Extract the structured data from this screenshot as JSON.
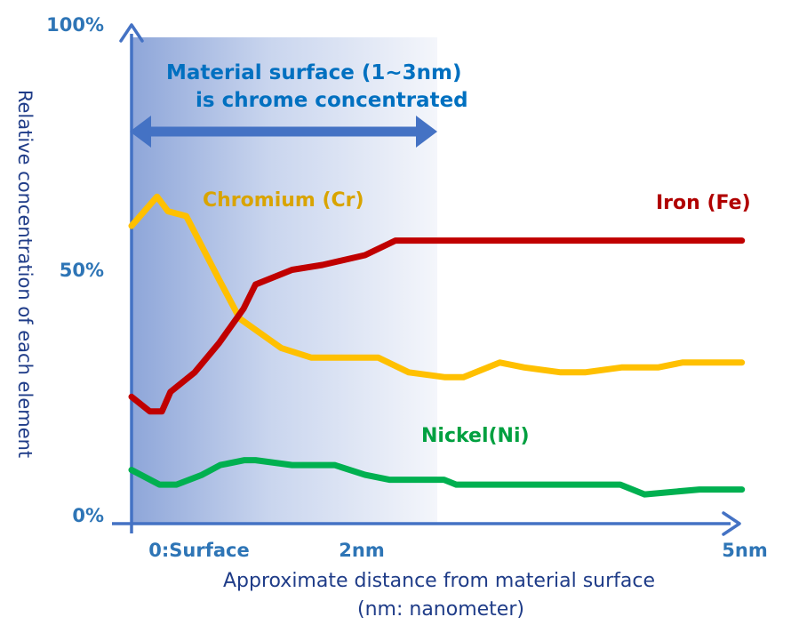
{
  "chart_data": {
    "type": "line",
    "xlabel": [
      "Approximate distance from material surface",
      "(nm: nanometer)"
    ],
    "ylabel": "Relative concentration of each element",
    "y_ticks": [
      "0%",
      "50%",
      "100%"
    ],
    "x_ticks": [
      "0:Surface",
      "2nm",
      "5nm"
    ],
    "xlim": [
      0,
      5
    ],
    "ylim": [
      0,
      100
    ],
    "grid": false,
    "annotation": {
      "lines": [
        "Material surface (1~3nm)",
        "is  chrome  concentrated"
      ],
      "range_nm": [
        0,
        2.5
      ]
    },
    "series": [
      {
        "name": "Iron (Fe)",
        "color": "#c00000",
        "x": [
          0,
          0.15,
          0.25,
          0.32,
          0.52,
          0.72,
          0.92,
          1.02,
          1.32,
          1.57,
          1.92,
          2.17,
          2.27,
          2.52,
          2.77,
          3.02,
          3.52,
          3.82,
          4.17,
          4.42,
          4.87,
          5.02
        ],
        "y": [
          26,
          23,
          23,
          27,
          31,
          37,
          44,
          49,
          52,
          53,
          55,
          58,
          58,
          58,
          58,
          58,
          58,
          58,
          58,
          58,
          58,
          58
        ]
      },
      {
        "name": "Chromium (Cr)",
        "color": "#ffc000",
        "x": [
          0,
          0.21,
          0.3,
          0.45,
          0.72,
          0.89,
          1.23,
          1.48,
          1.73,
          2.03,
          2.28,
          2.58,
          2.73,
          3.03,
          3.23,
          3.53,
          3.73,
          4.03,
          4.33,
          4.53,
          4.82,
          5.02
        ],
        "y": [
          61,
          67,
          64,
          63,
          50,
          42,
          36,
          34,
          34,
          34,
          31,
          30,
          30,
          33,
          32,
          31,
          31,
          32,
          32,
          33,
          33,
          33
        ]
      },
      {
        "name": "Nickel(Ni)",
        "color": "#00b050",
        "x": [
          0,
          0.23,
          0.37,
          0.58,
          0.73,
          0.93,
          1.02,
          1.32,
          1.67,
          1.92,
          2.12,
          2.37,
          2.57,
          2.67,
          2.92,
          3.17,
          3.42,
          3.77,
          4.02,
          4.22,
          4.67,
          5.02
        ],
        "y": [
          11,
          8,
          8,
          10,
          12,
          13,
          13,
          12,
          12,
          10,
          9,
          9,
          9,
          8,
          8,
          8,
          8,
          8,
          8,
          6,
          7,
          7
        ]
      }
    ]
  }
}
